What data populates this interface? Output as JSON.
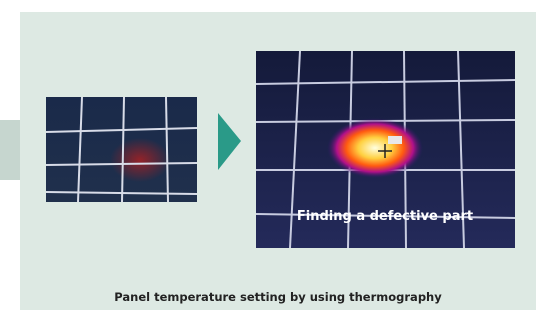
{
  "figure": {
    "image_caption": "Finding a defective part",
    "caption": "Panel temperature setting by using thermography"
  }
}
